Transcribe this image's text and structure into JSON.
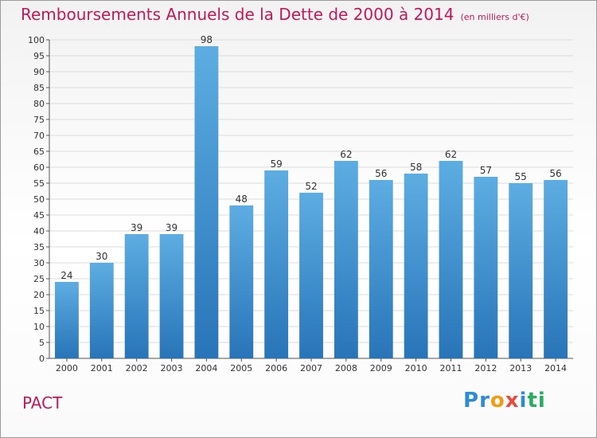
{
  "title": "Remboursements Annuels de la Dette de 2000 à 2014",
  "unit": "(en milliers d'€)",
  "commune": "PACT",
  "logo": {
    "letters": [
      "P",
      "r",
      "o",
      "x",
      "i",
      "t",
      "i"
    ],
    "colors": [
      "#2e8bd6",
      "#2e8bd6",
      "#f39c12",
      "#e74c3c",
      "#2e8bd6",
      "#27ae60",
      "#27ae60"
    ]
  },
  "colors": {
    "bar_light": "#5dade2",
    "bar_dark": "#2874b8",
    "title": "#c2185b"
  },
  "chart_data": {
    "type": "bar",
    "title": "Remboursements Annuels de la Dette de 2000 à 2014",
    "xlabel": "",
    "ylabel": "",
    "categories": [
      "2000",
      "2001",
      "2002",
      "2003",
      "2004",
      "2005",
      "2006",
      "2007",
      "2008",
      "2009",
      "2010",
      "2011",
      "2012",
      "2013",
      "2014"
    ],
    "values": [
      24,
      30,
      39,
      39,
      98,
      48,
      59,
      52,
      62,
      56,
      58,
      62,
      57,
      55,
      56
    ],
    "ylim": [
      0,
      100
    ],
    "ytick_step": 5,
    "grid": true
  }
}
